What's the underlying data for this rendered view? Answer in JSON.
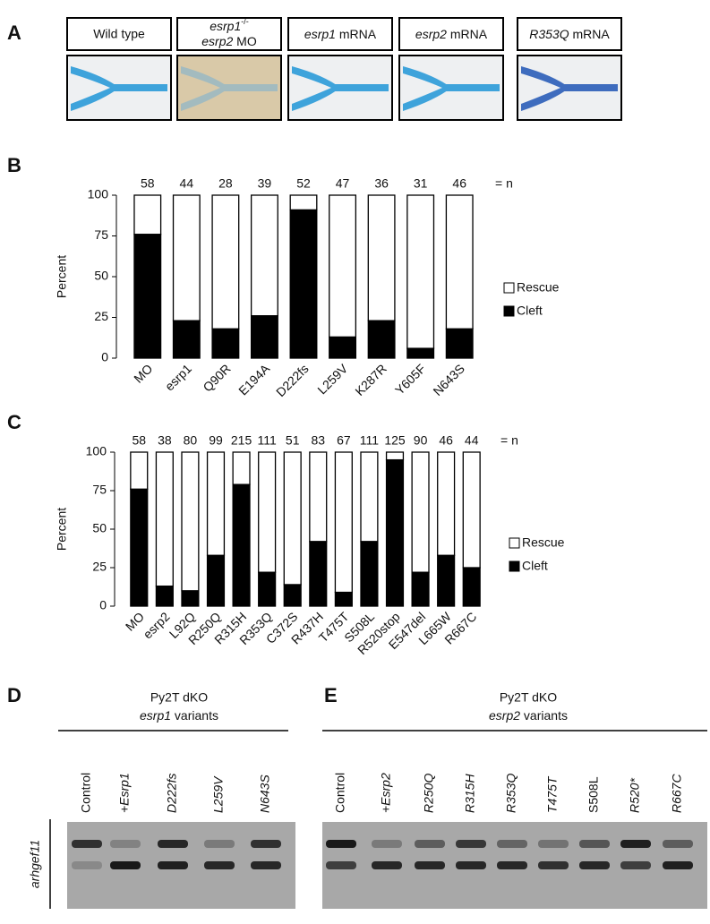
{
  "panel_a": {
    "letter": "A",
    "boxes": [
      {
        "text": "Wild type"
      },
      {
        "gene": "esrp1",
        "superscript": "-/-",
        "gene2": "esrp2",
        "suffix": "MO"
      },
      {
        "gene": "esrp1",
        "suffix": "mRNA"
      },
      {
        "gene": "esrp2",
        "suffix": "mRNA"
      },
      {
        "gene": "R353Q",
        "suffix": "mRNA"
      }
    ]
  },
  "chart_data": [
    {
      "type": "bar",
      "stacked": true,
      "panel_label": "B",
      "ylabel": "Percent",
      "categories": [
        "MO",
        "esrp1",
        "Q90R",
        "E194A",
        "D222fs",
        "L259V",
        "K287R",
        "Y605F",
        "N643S"
      ],
      "series": [
        {
          "name": "Rescue",
          "color": "#ffffff",
          "values": [
            24,
            77,
            82,
            74,
            9,
            87,
            77,
            94,
            82
          ]
        },
        {
          "name": "Cleft",
          "color": "#000000",
          "values": [
            76,
            23,
            18,
            26,
            91,
            13,
            23,
            6,
            18
          ]
        }
      ],
      "n_values": [
        58,
        44,
        28,
        39,
        52,
        47,
        36,
        31,
        46
      ],
      "n_label": "= n",
      "ylim": [
        0,
        100
      ],
      "yticks": [
        0,
        25,
        50,
        75,
        100
      ]
    },
    {
      "type": "bar",
      "stacked": true,
      "panel_label": "C",
      "ylabel": "Percent",
      "categories": [
        "MO",
        "esrp2",
        "L92Q",
        "R250Q",
        "R315H",
        "R353Q",
        "C372S",
        "R437H",
        "T475T",
        "S508L",
        "R520stop",
        "E547del",
        "L665W",
        "R667C"
      ],
      "series": [
        {
          "name": "Rescue",
          "color": "#ffffff",
          "values": [
            24,
            87,
            90,
            67,
            21,
            78,
            86,
            58,
            91,
            58,
            5,
            78,
            67,
            75
          ]
        },
        {
          "name": "Cleft",
          "color": "#000000",
          "values": [
            76,
            13,
            10,
            33,
            79,
            22,
            14,
            42,
            9,
            42,
            95,
            22,
            33,
            25
          ]
        }
      ],
      "n_values": [
        58,
        38,
        80,
        99,
        215,
        111,
        51,
        83,
        67,
        111,
        125,
        90,
        46,
        44
      ],
      "n_label": "= n",
      "ylim": [
        0,
        100
      ],
      "yticks": [
        0,
        25,
        50,
        75,
        100
      ]
    }
  ],
  "gene_label": "arhgef11",
  "panel_d": {
    "letter": "D",
    "title": "Py2T dKO",
    "gene": "esrp1",
    "subtitle": "variants",
    "lanes": [
      "Control",
      "+Esrp1",
      "D222fs",
      "L259V",
      "N643S"
    ]
  },
  "panel_e": {
    "letter": "E",
    "title": "Py2T dKO",
    "gene": "esrp2",
    "subtitle": "variants",
    "lanes": [
      "Control",
      "+Esrp2",
      "R250Q",
      "R315H",
      "R353Q",
      "T475T",
      "S508L",
      "R520*",
      "R667C"
    ]
  }
}
